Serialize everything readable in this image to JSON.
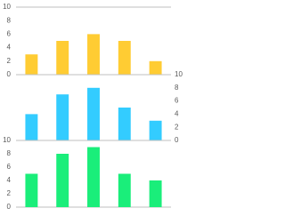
{
  "chart_data": [
    {
      "type": "bar",
      "categories": [
        null,
        null,
        null,
        null,
        null
      ],
      "values": [
        3,
        5,
        6,
        5,
        2
      ],
      "color": "#ffcc33",
      "ylim": [
        0,
        10
      ],
      "yticks": [
        0,
        2,
        4,
        6,
        8,
        10
      ],
      "axis_side": "left"
    },
    {
      "type": "bar",
      "categories": [
        null,
        null,
        null,
        null,
        null
      ],
      "values": [
        4,
        7,
        8,
        5,
        3
      ],
      "color": "#33ccff",
      "ylim": [
        0,
        10
      ],
      "yticks": [
        0,
        2,
        4,
        6,
        8,
        10
      ],
      "axis_side": "right"
    },
    {
      "type": "bar",
      "categories": [
        null,
        null,
        null,
        null,
        null
      ],
      "values": [
        5,
        8,
        9,
        5,
        4
      ],
      "color": "#1aee7a",
      "ylim": [
        0,
        10
      ],
      "yticks": [
        0,
        2,
        4,
        6,
        8,
        10
      ],
      "axis_side": "left"
    }
  ]
}
